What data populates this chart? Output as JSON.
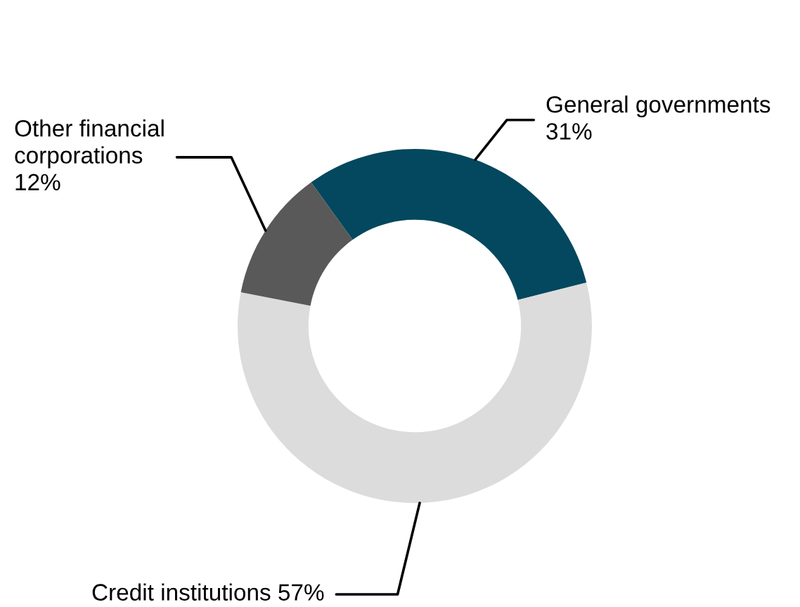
{
  "chart_data": {
    "type": "donut",
    "categories": [
      "General governments",
      "Credit institutions",
      "Other financial\ncorporations"
    ],
    "values": [
      31,
      57,
      12
    ],
    "value_labels": [
      "31%",
      "57%",
      "12%"
    ],
    "colors": [
      "#03485e",
      "#dcdcdc",
      "#595959"
    ]
  }
}
